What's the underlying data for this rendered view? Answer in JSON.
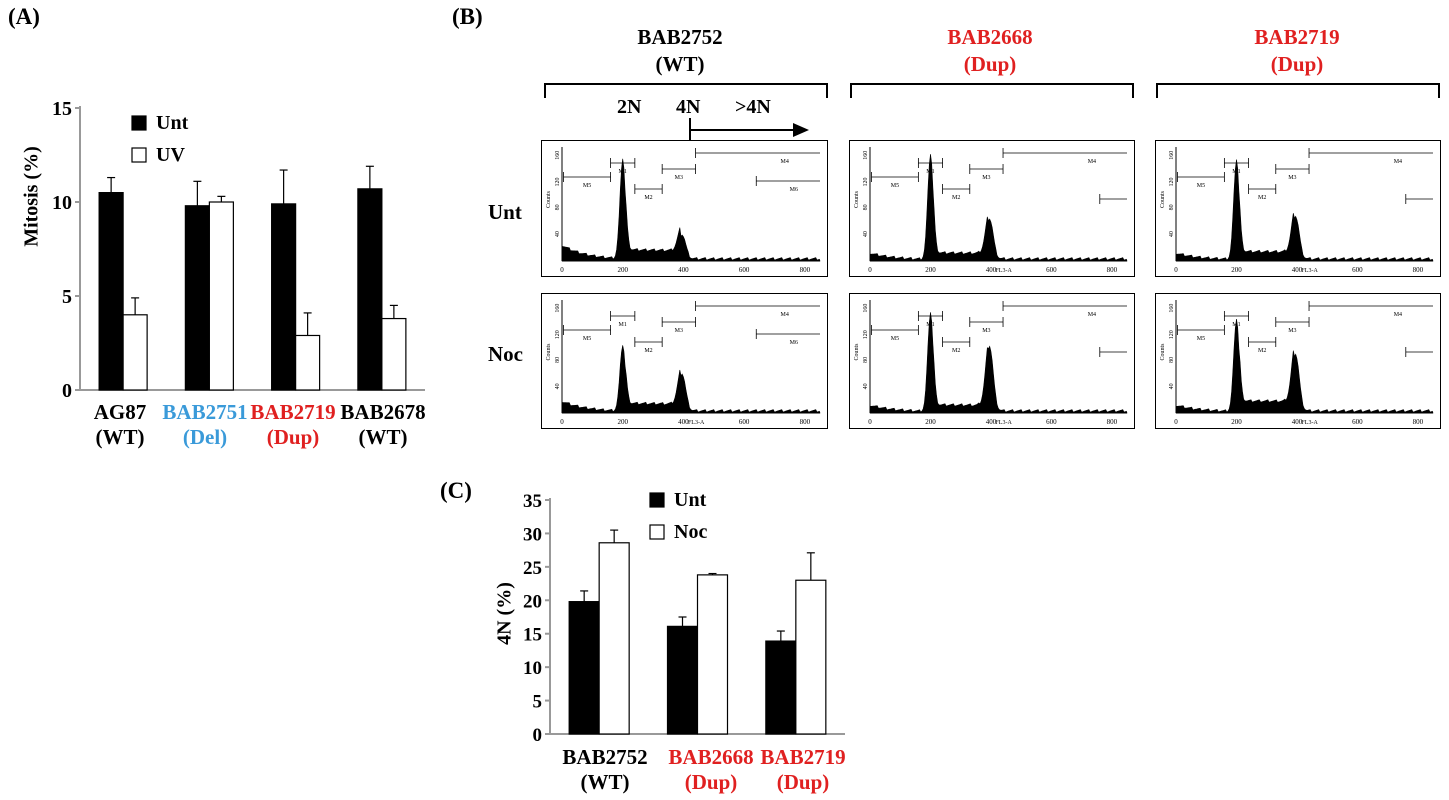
{
  "panel_labels": {
    "a": "(A)",
    "b": "(B)",
    "c": "(C)"
  },
  "panel_a": {
    "ylabel": "Mitosis (%)",
    "yticks": [
      "0",
      "5",
      "10",
      "15"
    ],
    "legend": [
      "Unt",
      "UV"
    ],
    "groups": [
      {
        "name": "AG87",
        "sub": "(WT)",
        "color": "#000000"
      },
      {
        "name": "BAB2751",
        "sub": "(Del)",
        "color": "#3a9ad9"
      },
      {
        "name": "BAB2719",
        "sub": "(Dup)",
        "color": "#e02020"
      },
      {
        "name": "BAB2678",
        "sub": "(WT)",
        "color": "#000000"
      }
    ]
  },
  "panel_b": {
    "columns": [
      {
        "name": "BAB2752",
        "sub": "(WT)",
        "color": "#000000"
      },
      {
        "name": "BAB2668",
        "sub": "(Dup)",
        "color": "#e02020"
      },
      {
        "name": "BAB2719",
        "sub": "(Dup)",
        "color": "#e02020"
      }
    ],
    "rows": [
      "Unt",
      "Noc"
    ],
    "ploidy": {
      "n2": "2N",
      "n4": "4N",
      "gt4": ">4N"
    },
    "counts_label": "Counts",
    "fl3_label": "FL3-A",
    "x_ticks": [
      "0",
      "200",
      "400",
      "600",
      "800"
    ],
    "y_ticks": [
      "160",
      "120",
      "80",
      "40"
    ],
    "gates": [
      "M1",
      "M2",
      "M3",
      "M4",
      "M5",
      "M6"
    ]
  },
  "panel_c": {
    "ylabel": "4N (%)",
    "yticks": [
      "0",
      "5",
      "10",
      "15",
      "20",
      "25",
      "30",
      "35"
    ],
    "legend": [
      "Unt",
      "Noc"
    ],
    "groups": [
      {
        "name": "BAB2752",
        "sub": "(WT)",
        "color": "#000000"
      },
      {
        "name": "BAB2668",
        "sub": "(Dup)",
        "color": "#e02020"
      },
      {
        "name": "BAB2719",
        "sub": "(Dup)",
        "color": "#e02020"
      }
    ]
  },
  "chart_data": [
    {
      "type": "bar",
      "panel": "A",
      "categories": [
        "AG87 (WT)",
        "BAB2751 (Del)",
        "BAB2719 (Dup)",
        "BAB2678 (WT)"
      ],
      "series": [
        {
          "name": "Unt",
          "values": [
            10.5,
            9.8,
            9.9,
            10.7
          ],
          "errors": [
            0.8,
            1.3,
            1.8,
            1.2
          ],
          "color": "#000000"
        },
        {
          "name": "UV",
          "values": [
            4.0,
            10.0,
            2.9,
            3.8
          ],
          "errors": [
            0.9,
            0.3,
            1.2,
            0.7
          ],
          "color": "#ffffff"
        }
      ],
      "ylabel": "Mitosis (%)",
      "ylim": [
        0,
        15
      ],
      "legend_position": "top-left"
    },
    {
      "type": "histogram",
      "panel": "B",
      "columns": [
        "BAB2752 (WT)",
        "BAB2668 (Dup)",
        "BAB2719 (Dup)"
      ],
      "rows": [
        "Unt",
        "Noc"
      ],
      "xlabel": "FL3-A",
      "ylabel": "Counts",
      "xlim": [
        0,
        850
      ],
      "ylim": [
        0,
        170
      ]
    },
    {
      "type": "bar",
      "panel": "C",
      "categories": [
        "BAB2752 (WT)",
        "BAB2668 (Dup)",
        "BAB2719 (Dup)"
      ],
      "series": [
        {
          "name": "Unt",
          "values": [
            19.8,
            16.1,
            13.9
          ],
          "errors": [
            1.6,
            1.4,
            1.5
          ],
          "color": "#000000"
        },
        {
          "name": "Noc",
          "values": [
            28.6,
            23.8,
            23.0
          ],
          "errors": [
            1.9,
            0.2,
            4.1
          ],
          "color": "#ffffff"
        }
      ],
      "ylabel": "4N (%)",
      "ylim": [
        0,
        35
      ],
      "legend_position": "top-left"
    }
  ]
}
